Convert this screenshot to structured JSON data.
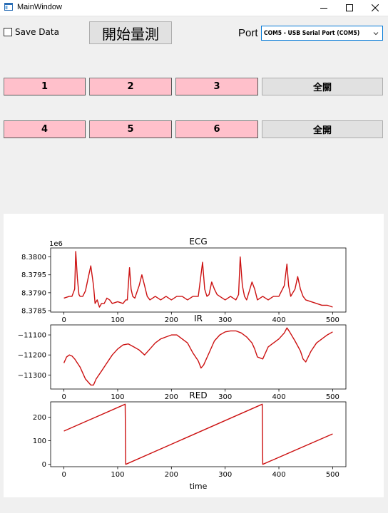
{
  "window": {
    "title": "MainWindow",
    "minimize_icon": "minimize-icon",
    "maximize_icon": "maximize-icon",
    "close_icon": "close-icon"
  },
  "controls": {
    "save_data_label": "Save Data",
    "save_data_checked": false,
    "start_button_label": "開始量測",
    "port_label": "Port",
    "port_value": "COM5 - USB Serial Port (COM5)"
  },
  "buttons": {
    "row1": [
      "1",
      "2",
      "3"
    ],
    "row1_all": "全關",
    "row2": [
      "4",
      "5",
      "6"
    ],
    "row2_all": "全開",
    "pink_color": "#ffc0cb"
  },
  "chart_data": [
    {
      "type": "line",
      "title": "ECG",
      "offset_text": "1e6",
      "color": "#cc1111",
      "xlim": [
        0,
        500
      ],
      "ylim": [
        8.37846,
        8.38025
      ],
      "xticks": [
        0,
        100,
        200,
        300,
        400,
        500
      ],
      "yticks": [
        8.3785,
        8.379,
        8.3795,
        8.38
      ],
      "ytick_labels": [
        "8.3785",
        "8.3790",
        "8.3795",
        "8.3800"
      ],
      "x": [
        0,
        10,
        15,
        20,
        22,
        25,
        28,
        30,
        35,
        40,
        45,
        50,
        55,
        58,
        62,
        66,
        70,
        75,
        80,
        85,
        90,
        100,
        110,
        115,
        118,
        122,
        125,
        128,
        132,
        140,
        145,
        150,
        155,
        160,
        170,
        180,
        190,
        200,
        210,
        220,
        230,
        240,
        250,
        255,
        258,
        262,
        266,
        270,
        275,
        280,
        285,
        290,
        300,
        310,
        320,
        325,
        328,
        332,
        336,
        340,
        345,
        350,
        355,
        360,
        370,
        380,
        390,
        400,
        410,
        415,
        418,
        422,
        426,
        430,
        435,
        440,
        445,
        450,
        460,
        470,
        480,
        490,
        500
      ],
      "y": [
        8.37885,
        8.3789,
        8.3789,
        8.3791,
        8.38015,
        8.3794,
        8.37895,
        8.3789,
        8.3789,
        8.37905,
        8.3794,
        8.37975,
        8.3792,
        8.3787,
        8.3788,
        8.3786,
        8.3787,
        8.3787,
        8.37885,
        8.3788,
        8.3787,
        8.37875,
        8.3787,
        8.3788,
        8.3788,
        8.3797,
        8.3791,
        8.3789,
        8.37885,
        8.3792,
        8.3795,
        8.3792,
        8.3789,
        8.3788,
        8.3789,
        8.3788,
        8.3789,
        8.3788,
        8.3789,
        8.3789,
        8.3788,
        8.3789,
        8.3789,
        8.3795,
        8.37985,
        8.3791,
        8.3789,
        8.37895,
        8.3793,
        8.3791,
        8.37895,
        8.3789,
        8.3788,
        8.3789,
        8.3788,
        8.37895,
        8.38,
        8.3792,
        8.3789,
        8.3788,
        8.37905,
        8.3793,
        8.3791,
        8.3788,
        8.3789,
        8.3788,
        8.3789,
        8.3789,
        8.3792,
        8.3798,
        8.3792,
        8.3789,
        8.379,
        8.3791,
        8.37945,
        8.3791,
        8.3789,
        8.3788,
        8.37875,
        8.3787,
        8.37865,
        8.37865,
        8.3786
      ]
    },
    {
      "type": "line",
      "title": "IR",
      "color": "#cc1111",
      "xlim": [
        0,
        500
      ],
      "ylim": [
        -11370,
        -11050
      ],
      "xticks": [
        0,
        100,
        200,
        300,
        400,
        500
      ],
      "yticks": [
        -11300,
        -11200,
        -11100
      ],
      "ytick_labels": [
        "−11300",
        "−11200",
        "−11100"
      ],
      "x": [
        0,
        5,
        10,
        15,
        20,
        30,
        40,
        50,
        55,
        60,
        70,
        80,
        90,
        100,
        110,
        120,
        130,
        140,
        150,
        160,
        170,
        180,
        190,
        200,
        210,
        220,
        230,
        240,
        250,
        255,
        260,
        270,
        280,
        290,
        300,
        310,
        320,
        330,
        340,
        350,
        355,
        360,
        370,
        380,
        390,
        400,
        410,
        415,
        420,
        430,
        440,
        445,
        450,
        460,
        470,
        480,
        490,
        500
      ],
      "y": [
        -11240,
        -11210,
        -11200,
        -11205,
        -11220,
        -11260,
        -11320,
        -11350,
        -11350,
        -11320,
        -11280,
        -11240,
        -11200,
        -11170,
        -11150,
        -11145,
        -11160,
        -11175,
        -11200,
        -11170,
        -11140,
        -11120,
        -11110,
        -11100,
        -11100,
        -11120,
        -11140,
        -11190,
        -11230,
        -11265,
        -11250,
        -11190,
        -11130,
        -11100,
        -11085,
        -11080,
        -11080,
        -11090,
        -11110,
        -11140,
        -11170,
        -11210,
        -11220,
        -11160,
        -11140,
        -11120,
        -11090,
        -11065,
        -11085,
        -11130,
        -11180,
        -11220,
        -11235,
        -11180,
        -11140,
        -11120,
        -11100,
        -11085
      ]
    },
    {
      "type": "line",
      "title": "RED",
      "xlabel": "time",
      "color": "#cc1111",
      "xlim": [
        0,
        500
      ],
      "ylim": [
        -10,
        265
      ],
      "xticks": [
        0,
        100,
        200,
        300,
        400,
        500
      ],
      "yticks": [
        0,
        100,
        200
      ],
      "ytick_labels": [
        "0",
        "100",
        "200"
      ],
      "x": [
        0,
        114,
        115,
        369,
        370,
        500
      ],
      "y": [
        141,
        255,
        0,
        255,
        0,
        129
      ]
    }
  ]
}
